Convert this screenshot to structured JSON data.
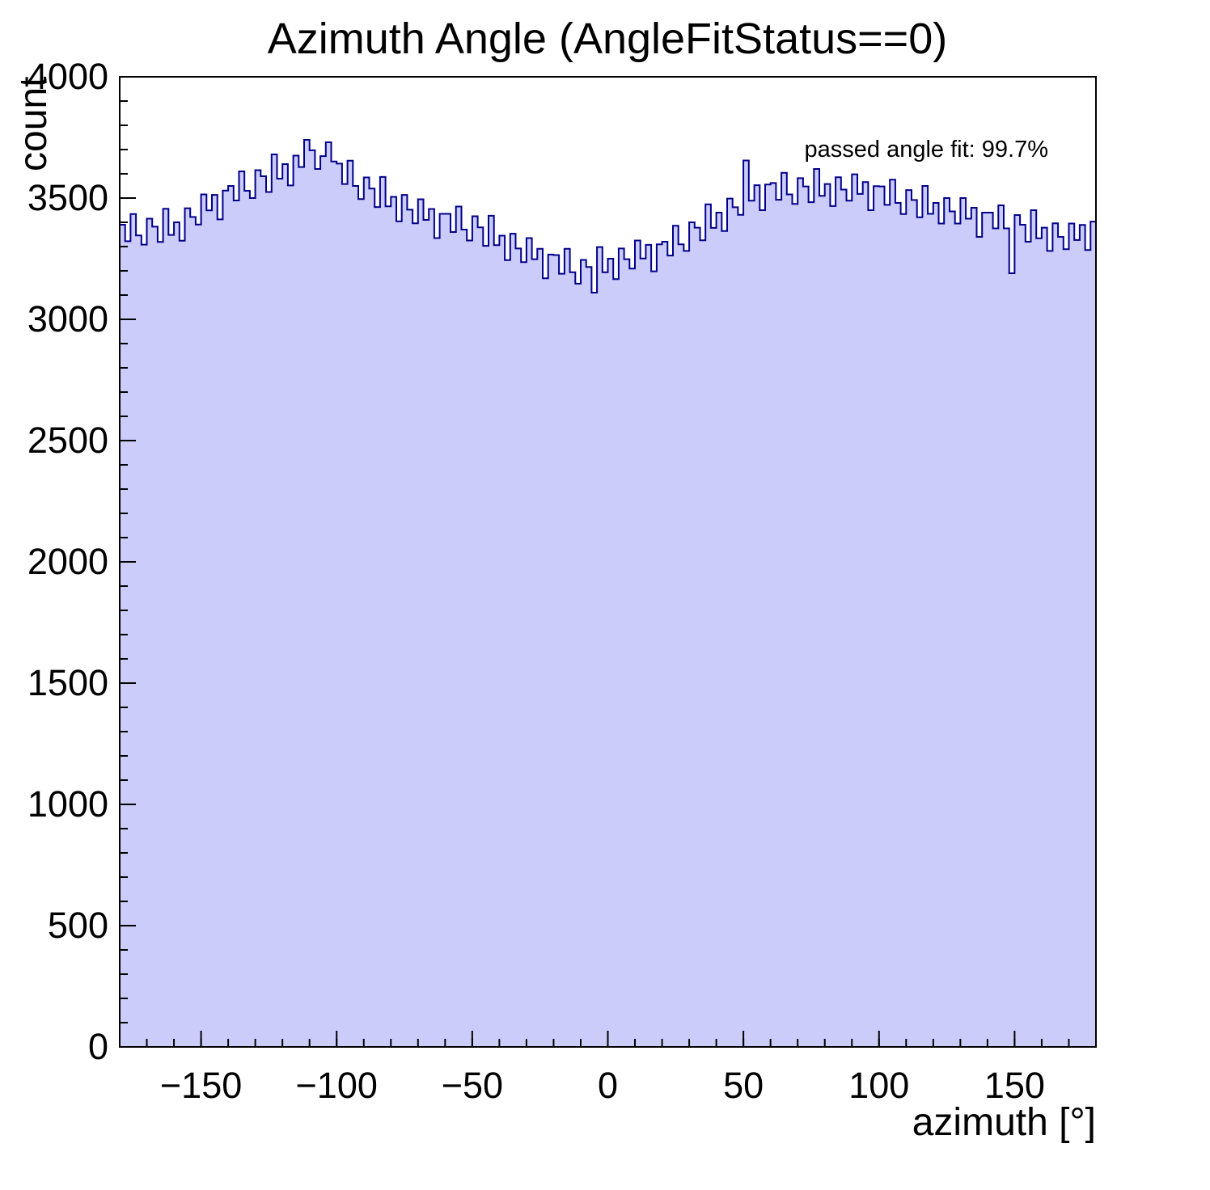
{
  "chart_data": {
    "type": "bar",
    "subtype": "histogram",
    "title": "Azimuth Angle (AngleFitStatus==0)",
    "xlabel": "azimuth [°]",
    "ylabel": "count",
    "annotation": "passed angle fit: 99.7%",
    "xlim": [
      -180,
      180
    ],
    "ylim": [
      0,
      4000
    ],
    "bin_width": 2,
    "x_ticks": [
      -150,
      -100,
      -50,
      0,
      50,
      100,
      150
    ],
    "x_tick_labels": [
      "−150",
      "−100",
      "−50",
      "0",
      "50",
      "100",
      "150"
    ],
    "y_ticks": [
      0,
      500,
      1000,
      1500,
      2000,
      2500,
      3000,
      3500,
      4000
    ],
    "y_tick_labels": [
      "0",
      "500",
      "1000",
      "1500",
      "2000",
      "2500",
      "3000",
      "3500",
      "4000"
    ],
    "x_minor_step": 10,
    "y_minor_step": 100,
    "grid": false,
    "legend": "none",
    "fill_color": "#ccccfa",
    "line_color": "#00008b",
    "values": [
      3390,
      3322,
      3434,
      3346,
      3308,
      3415,
      3382,
      3319,
      3456,
      3348,
      3400,
      3324,
      3458,
      3422,
      3391,
      3515,
      3449,
      3513,
      3412,
      3531,
      3550,
      3490,
      3610,
      3530,
      3500,
      3615,
      3590,
      3525,
      3680,
      3580,
      3640,
      3552,
      3675,
      3628,
      3740,
      3697,
      3620,
      3673,
      3730,
      3651,
      3642,
      3558,
      3654,
      3550,
      3496,
      3585,
      3539,
      3463,
      3587,
      3466,
      3505,
      3404,
      3513,
      3452,
      3396,
      3495,
      3410,
      3455,
      3335,
      3435,
      3435,
      3360,
      3465,
      3370,
      3325,
      3425,
      3379,
      3303,
      3427,
      3306,
      3345,
      3244,
      3353,
      3292,
      3236,
      3335,
      3248,
      3291,
      3169,
      3267,
      3265,
      3188,
      3291,
      3194,
      3147,
      3245,
      3216,
      3110,
      3298,
      3194,
      3250,
      3166,
      3292,
      3248,
      3209,
      3325,
      3251,
      3307,
      3198,
      3309,
      3320,
      3263,
      3386,
      3309,
      3282,
      3400,
      3378,
      3326,
      3474,
      3377,
      3440,
      3364,
      3498,
      3462,
      3431,
      3655,
      3489,
      3553,
      3450,
      3556,
      3562,
      3493,
      3604,
      3515,
      3476,
      3582,
      3548,
      3483,
      3620,
      3509,
      3558,
      3467,
      3586,
      3535,
      3489,
      3598,
      3517,
      3566,
      3450,
      3549,
      3548,
      3472,
      3576,
      3480,
      3434,
      3533,
      3492,
      3421,
      3550,
      3435,
      3480,
      3395,
      3500,
      3445,
      3395,
      3500,
      3415,
      3460,
      3340,
      3440,
      3440,
      3375,
      3470,
      3375,
      3190,
      3430,
      3390,
      3320,
      3450,
      3334,
      3378,
      3282,
      3396,
      3340,
      3289,
      3395,
      3327,
      3389,
      3286,
      3403
    ]
  }
}
